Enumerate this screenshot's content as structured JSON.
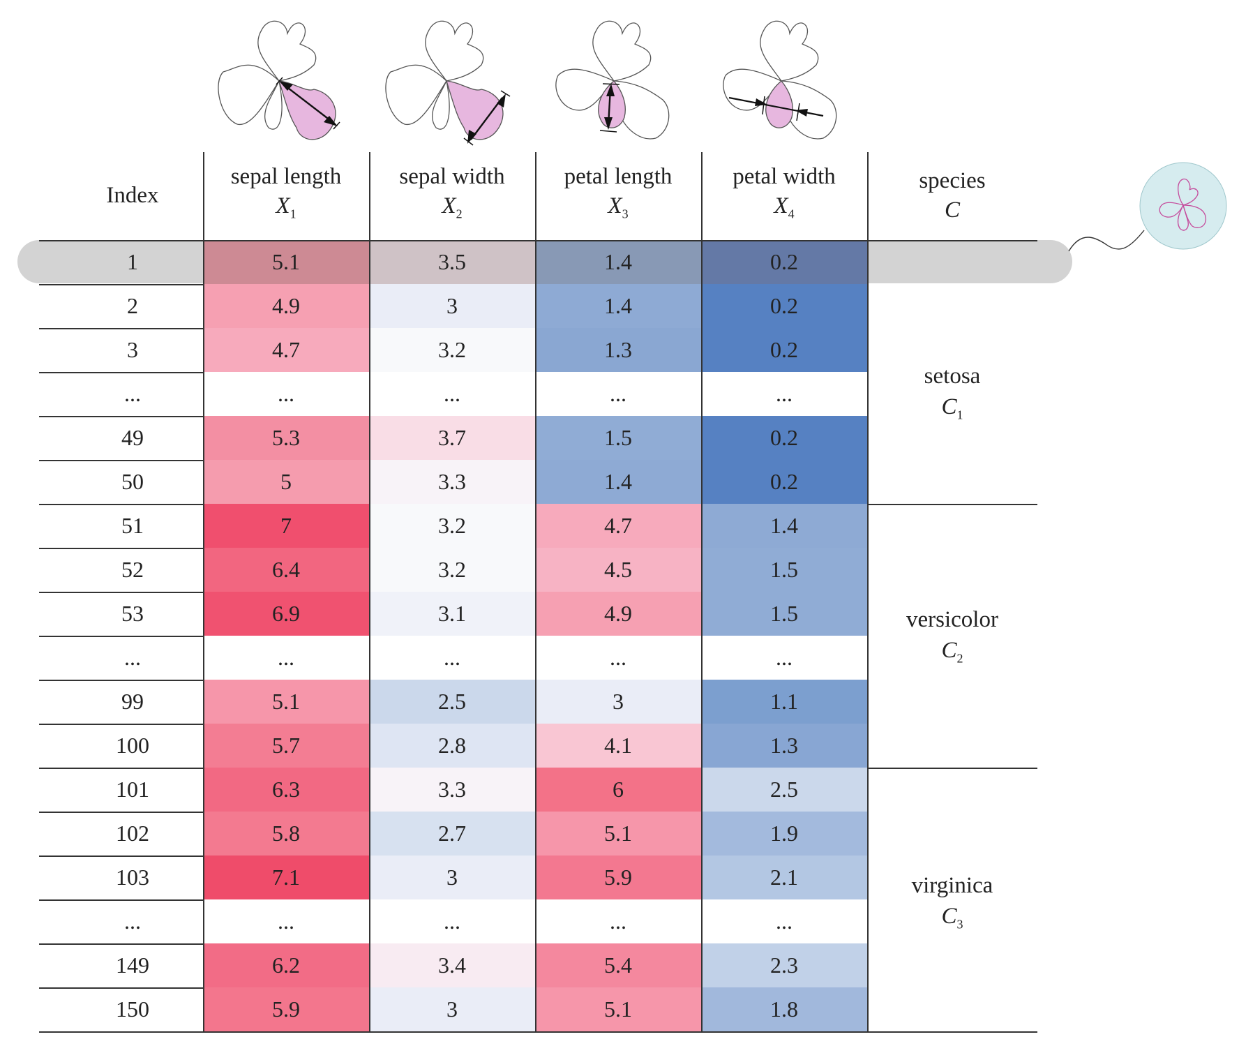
{
  "table": {
    "index_header": "Index",
    "columns": [
      {
        "name": "sepal length",
        "symbol": "X",
        "sub": "1"
      },
      {
        "name": "sepal width",
        "symbol": "X",
        "sub": "2"
      },
      {
        "name": "petal length",
        "symbol": "X",
        "sub": "3"
      },
      {
        "name": "petal width",
        "symbol": "X",
        "sub": "4"
      }
    ],
    "species_header": {
      "name": "species",
      "symbol": "C"
    },
    "rows": [
      {
        "index": "1",
        "values": [
          "5.1",
          "3.5",
          "1.4",
          "0.2"
        ],
        "colors": [
          "#cd8a94",
          "#cfc2c6",
          "#8899b5",
          "#6479a6"
        ]
      },
      {
        "index": "2",
        "values": [
          "4.9",
          "3",
          "1.4",
          "0.2"
        ],
        "colors": [
          "#f6a0b2",
          "#eaedf7",
          "#8eaad4",
          "#5681c2"
        ]
      },
      {
        "index": "3",
        "values": [
          "4.7",
          "3.2",
          "1.3",
          "0.2"
        ],
        "colors": [
          "#f7aabc",
          "#f8f9fb",
          "#8aa7d2",
          "#5681c2"
        ]
      },
      {
        "index": "...",
        "values": [
          "...",
          "...",
          "...",
          "..."
        ],
        "colors": [
          "#ffffff",
          "#ffffff",
          "#ffffff",
          "#ffffff"
        ]
      },
      {
        "index": "49",
        "values": [
          "5.3",
          "3.7",
          "1.5",
          "0.2"
        ],
        "colors": [
          "#f38fa3",
          "#f9dde6",
          "#90acd5",
          "#5681c2"
        ]
      },
      {
        "index": "50",
        "values": [
          "5",
          "3.3",
          "1.4",
          "0.2"
        ],
        "colors": [
          "#f59cae",
          "#f8f3f8",
          "#8eaad4",
          "#5681c2"
        ]
      },
      {
        "index": "51",
        "values": [
          "7",
          "3.2",
          "4.7",
          "1.4"
        ],
        "colors": [
          "#f04f6e",
          "#f8f9fb",
          "#f7aabc",
          "#8eaad4"
        ]
      },
      {
        "index": "52",
        "values": [
          "6.4",
          "3.2",
          "4.5",
          "1.5"
        ],
        "colors": [
          "#f26680",
          "#f8f9fb",
          "#f7b3c4",
          "#90acd5"
        ]
      },
      {
        "index": "53",
        "values": [
          "6.9",
          "3.1",
          "4.9",
          "1.5"
        ],
        "colors": [
          "#f05270",
          "#f0f2f9",
          "#f6a0b2",
          "#90acd5"
        ]
      },
      {
        "index": "...",
        "values": [
          "...",
          "...",
          "...",
          "..."
        ],
        "colors": [
          "#ffffff",
          "#ffffff",
          "#ffffff",
          "#ffffff"
        ]
      },
      {
        "index": "99",
        "values": [
          "5.1",
          "2.5",
          "3",
          "1.1"
        ],
        "colors": [
          "#f696aa",
          "#cbd8eb",
          "#eaedf7",
          "#7c9fcf"
        ]
      },
      {
        "index": "100",
        "values": [
          "5.7",
          "2.8",
          "4.1",
          "1.3"
        ],
        "colors": [
          "#f37d93",
          "#dee5f3",
          "#f9c6d3",
          "#88a6d3"
        ]
      },
      {
        "index": "101",
        "values": [
          "6.3",
          "3.3",
          "6",
          "2.5"
        ],
        "colors": [
          "#f26983",
          "#f8f3f8",
          "#f37288",
          "#cbd8eb"
        ]
      },
      {
        "index": "102",
        "values": [
          "5.8",
          "2.7",
          "5.1",
          "1.9"
        ],
        "colors": [
          "#f37a90",
          "#d7e1f0",
          "#f696aa",
          "#a3badd"
        ]
      },
      {
        "index": "103",
        "values": [
          "7.1",
          "3",
          "5.9",
          "2.1"
        ],
        "colors": [
          "#ef4c6a",
          "#eaedf7",
          "#f37890",
          "#b3c7e3"
        ]
      },
      {
        "index": "...",
        "values": [
          "...",
          "...",
          "...",
          "..."
        ],
        "colors": [
          "#ffffff",
          "#ffffff",
          "#ffffff",
          "#ffffff"
        ]
      },
      {
        "index": "149",
        "values": [
          "6.2",
          "3.4",
          "5.4",
          "2.3"
        ],
        "colors": [
          "#f26c86",
          "#f8ebf2",
          "#f4889e",
          "#c1d1e8"
        ]
      },
      {
        "index": "150",
        "values": [
          "5.9",
          "3",
          "5.1",
          "1.8"
        ],
        "colors": [
          "#f3768d",
          "#eaedf7",
          "#f696aa",
          "#a1b8dc"
        ]
      }
    ],
    "species_groups": [
      {
        "name": "setosa",
        "symbol": "C",
        "sub": "1"
      },
      {
        "name": "versicolor",
        "symbol": "C",
        "sub": "2"
      },
      {
        "name": "virginica",
        "symbol": "C",
        "sub": "3"
      }
    ]
  }
}
